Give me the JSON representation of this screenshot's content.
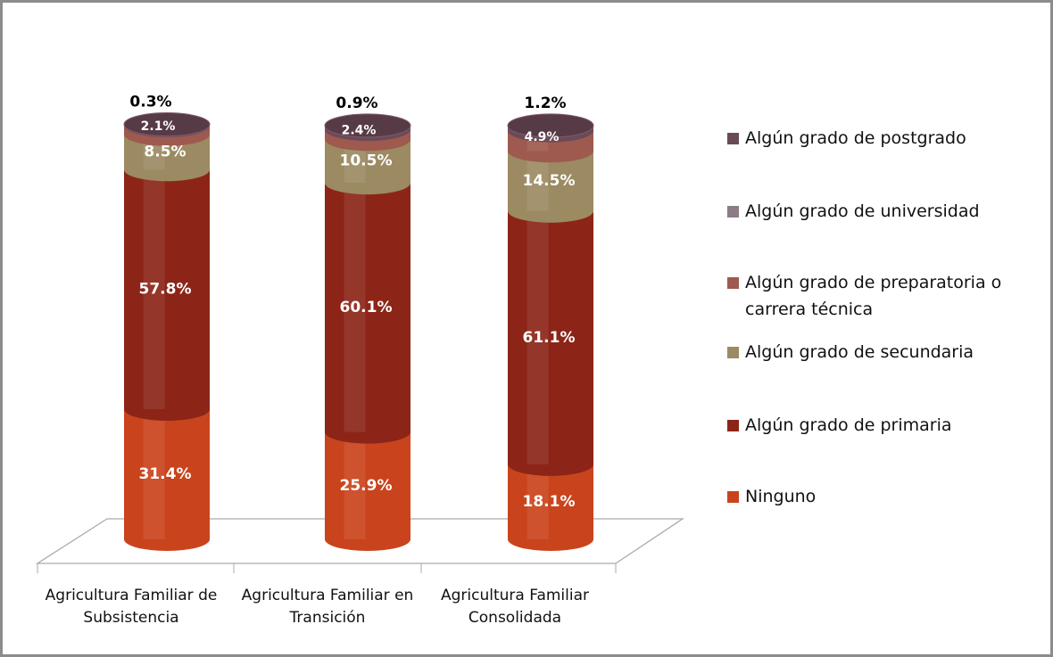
{
  "chart_data": {
    "type": "bar",
    "stacked": true,
    "categories": [
      "Agricultura Familiar de Subsistencia",
      "Agricultura Familiar en Transición",
      "Agricultura Familiar Consolidada"
    ],
    "ylim": [
      0,
      100
    ],
    "series": [
      {
        "name": "Ninguno",
        "color": "#c9441c",
        "values": [
          31.4,
          25.9,
          18.1
        ],
        "value_labels": [
          "31.4%",
          "25.9%",
          "18.1%"
        ]
      },
      {
        "name": "Algún grado de primaria",
        "color": "#8c2518",
        "values": [
          57.8,
          60.1,
          61.1
        ],
        "value_labels": [
          "57.8%",
          "60.1%",
          "61.1%"
        ]
      },
      {
        "name": "Algún grado de secundaria",
        "color": "#9c8a62",
        "values": [
          8.5,
          10.5,
          14.5
        ],
        "value_labels": [
          "8.5%",
          "10.5%",
          "14.5%"
        ]
      },
      {
        "name": "Algún grado de preparatoria o carrera técnica",
        "color": "#9e5a4f",
        "values": [
          2.1,
          2.4,
          4.9
        ],
        "value_labels": [
          "2.1%",
          "2.4%",
          "4.9%"
        ]
      },
      {
        "name": "Algún grado de universidad",
        "color": "#8a7d86",
        "values": [
          null,
          null,
          null
        ]
      },
      {
        "name": "Algún grado de postgrado",
        "color": "#6b4a58",
        "values": [
          0.3,
          0.9,
          1.2
        ],
        "value_labels": [
          "0.3%",
          "0.9%",
          "1.2%"
        ]
      }
    ]
  }
}
